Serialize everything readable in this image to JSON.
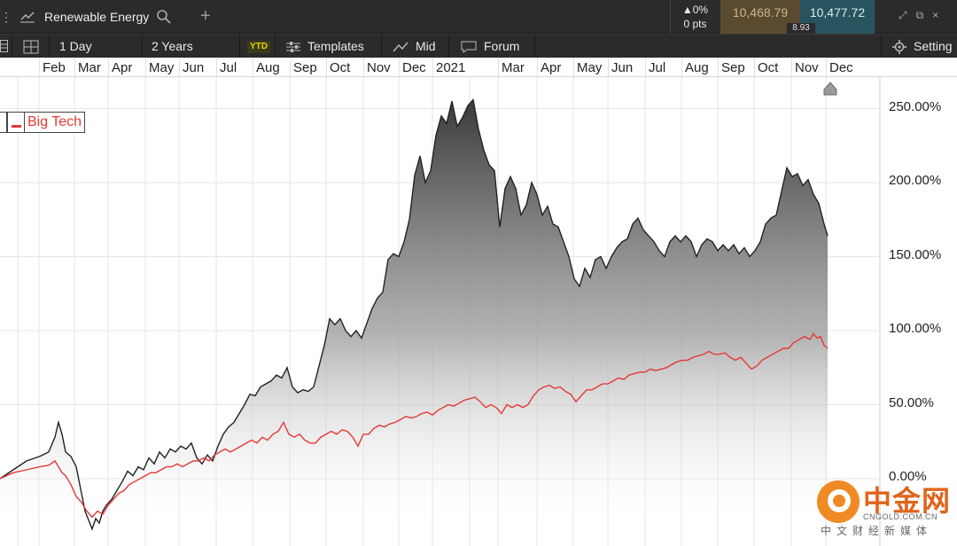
{
  "topbar": {
    "instrument": "Renewable Energy",
    "change_pct": "▲0%",
    "change_pts": "0 pts",
    "bid": "10,468.79",
    "ask": "10,477.72",
    "spread": "8.93"
  },
  "toolbar": {
    "interval": "1 Day",
    "range": "2 Years",
    "ytd": "YTD",
    "templates": "Templates",
    "price_type": "Mid",
    "forum": "Forum",
    "settings": "Setting"
  },
  "legend": {
    "label": "Big Tech",
    "color": "#e53935"
  },
  "watermark": {
    "name": "中金网",
    "domain": "CNGOLD.COM.CN",
    "slogan": "中文财经新媒体"
  },
  "chart_data": {
    "type": "area",
    "x_labels": [
      "Feb",
      "Mar",
      "Apr",
      "May",
      "Jun",
      "Jul",
      "Aug",
      "Sep",
      "Oct",
      "Nov",
      "Dec",
      "2021",
      "Mar",
      "Apr",
      "May",
      "Jun",
      "Jul",
      "Aug",
      "Sep",
      "Oct",
      "Nov",
      "Dec"
    ],
    "y_ticks": [
      "0.00%",
      "50.00%",
      "100.00%",
      "150.00%",
      "200.00%",
      "250.00%"
    ],
    "ylim": [
      -45,
      275
    ],
    "grid": true,
    "legend_position": "top-left",
    "series": [
      {
        "color": "#222222",
        "fill": "gradient-grey",
        "points": [
          [
            0,
            0
          ],
          [
            15,
            6
          ],
          [
            30,
            12
          ],
          [
            45,
            15
          ],
          [
            55,
            18
          ],
          [
            62,
            28
          ],
          [
            66,
            38
          ],
          [
            70,
            30
          ],
          [
            74,
            18
          ],
          [
            80,
            15
          ],
          [
            86,
            8
          ],
          [
            92,
            -10
          ],
          [
            96,
            -22
          ],
          [
            100,
            -28
          ],
          [
            104,
            -34
          ],
          [
            108,
            -27
          ],
          [
            112,
            -30
          ],
          [
            116,
            -22
          ],
          [
            120,
            -18
          ],
          [
            126,
            -14
          ],
          [
            132,
            -8
          ],
          [
            138,
            -2
          ],
          [
            144,
            5
          ],
          [
            150,
            2
          ],
          [
            156,
            8
          ],
          [
            162,
            6
          ],
          [
            168,
            14
          ],
          [
            174,
            10
          ],
          [
            180,
            18
          ],
          [
            186,
            14
          ],
          [
            192,
            20
          ],
          [
            198,
            18
          ],
          [
            204,
            22
          ],
          [
            210,
            20
          ],
          [
            216,
            24
          ],
          [
            222,
            14
          ],
          [
            228,
            10
          ],
          [
            234,
            16
          ],
          [
            240,
            12
          ],
          [
            246,
            22
          ],
          [
            252,
            30
          ],
          [
            258,
            35
          ],
          [
            264,
            38
          ],
          [
            270,
            44
          ],
          [
            276,
            50
          ],
          [
            282,
            57
          ],
          [
            288,
            56
          ],
          [
            294,
            62
          ],
          [
            300,
            64
          ],
          [
            306,
            66
          ],
          [
            312,
            70
          ],
          [
            318,
            68
          ],
          [
            324,
            75
          ],
          [
            330,
            62
          ],
          [
            336,
            58
          ],
          [
            342,
            60
          ],
          [
            348,
            59
          ],
          [
            354,
            62
          ],
          [
            360,
            76
          ],
          [
            366,
            90
          ],
          [
            372,
            108
          ],
          [
            378,
            104
          ],
          [
            384,
            108
          ],
          [
            390,
            100
          ],
          [
            396,
            96
          ],
          [
            402,
            100
          ],
          [
            408,
            95
          ],
          [
            414,
            105
          ],
          [
            420,
            115
          ],
          [
            426,
            122
          ],
          [
            432,
            126
          ],
          [
            438,
            148
          ],
          [
            444,
            152
          ],
          [
            450,
            150
          ],
          [
            456,
            160
          ],
          [
            462,
            175
          ],
          [
            468,
            205
          ],
          [
            474,
            218
          ],
          [
            480,
            200
          ],
          [
            486,
            208
          ],
          [
            492,
            232
          ],
          [
            498,
            245
          ],
          [
            504,
            240
          ],
          [
            510,
            255
          ],
          [
            516,
            238
          ],
          [
            522,
            244
          ],
          [
            528,
            252
          ],
          [
            534,
            256
          ],
          [
            540,
            236
          ],
          [
            546,
            222
          ],
          [
            552,
            212
          ],
          [
            558,
            208
          ],
          [
            564,
            170
          ],
          [
            570,
            196
          ],
          [
            576,
            204
          ],
          [
            582,
            196
          ],
          [
            588,
            178
          ],
          [
            594,
            185
          ],
          [
            600,
            200
          ],
          [
            606,
            192
          ],
          [
            612,
            178
          ],
          [
            618,
            184
          ],
          [
            624,
            172
          ],
          [
            630,
            170
          ],
          [
            636,
            160
          ],
          [
            642,
            150
          ],
          [
            648,
            135
          ],
          [
            654,
            130
          ],
          [
            660,
            142
          ],
          [
            666,
            136
          ],
          [
            672,
            148
          ],
          [
            678,
            150
          ],
          [
            684,
            142
          ],
          [
            690,
            150
          ],
          [
            696,
            156
          ],
          [
            702,
            160
          ],
          [
            708,
            162
          ],
          [
            714,
            172
          ],
          [
            720,
            176
          ],
          [
            726,
            168
          ],
          [
            732,
            164
          ],
          [
            738,
            160
          ],
          [
            744,
            154
          ],
          [
            750,
            150
          ],
          [
            756,
            160
          ],
          [
            762,
            164
          ],
          [
            768,
            160
          ],
          [
            774,
            164
          ],
          [
            780,
            160
          ],
          [
            786,
            150
          ],
          [
            792,
            158
          ],
          [
            798,
            162
          ],
          [
            804,
            160
          ],
          [
            810,
            154
          ],
          [
            816,
            158
          ],
          [
            822,
            154
          ],
          [
            828,
            158
          ],
          [
            834,
            152
          ],
          [
            840,
            156
          ],
          [
            846,
            150
          ],
          [
            852,
            154
          ],
          [
            858,
            160
          ],
          [
            864,
            172
          ],
          [
            870,
            176
          ],
          [
            876,
            178
          ],
          [
            882,
            194
          ],
          [
            888,
            210
          ],
          [
            894,
            204
          ],
          [
            900,
            206
          ],
          [
            906,
            198
          ],
          [
            912,
            202
          ],
          [
            918,
            192
          ],
          [
            924,
            186
          ],
          [
            930,
            172
          ],
          [
            934,
            164
          ]
        ]
      },
      {
        "name": "Big Tech",
        "color": "#e53935",
        "points": [
          [
            0,
            0
          ],
          [
            15,
            4
          ],
          [
            30,
            6
          ],
          [
            45,
            8
          ],
          [
            55,
            9
          ],
          [
            62,
            12
          ],
          [
            66,
            8
          ],
          [
            70,
            4
          ],
          [
            74,
            2
          ],
          [
            80,
            -4
          ],
          [
            86,
            -12
          ],
          [
            92,
            -16
          ],
          [
            98,
            -22
          ],
          [
            104,
            -26
          ],
          [
            110,
            -22
          ],
          [
            116,
            -24
          ],
          [
            122,
            -18
          ],
          [
            128,
            -14
          ],
          [
            134,
            -10
          ],
          [
            140,
            -8
          ],
          [
            146,
            -4
          ],
          [
            152,
            -2
          ],
          [
            158,
            0
          ],
          [
            164,
            2
          ],
          [
            170,
            4
          ],
          [
            176,
            4
          ],
          [
            182,
            6
          ],
          [
            188,
            8
          ],
          [
            194,
            8
          ],
          [
            200,
            10
          ],
          [
            206,
            8
          ],
          [
            212,
            10
          ],
          [
            218,
            12
          ],
          [
            224,
            12
          ],
          [
            230,
            14
          ],
          [
            236,
            12
          ],
          [
            242,
            16
          ],
          [
            248,
            18
          ],
          [
            254,
            20
          ],
          [
            260,
            18
          ],
          [
            266,
            20
          ],
          [
            272,
            22
          ],
          [
            278,
            24
          ],
          [
            284,
            26
          ],
          [
            290,
            24
          ],
          [
            296,
            28
          ],
          [
            302,
            26
          ],
          [
            308,
            30
          ],
          [
            314,
            32
          ],
          [
            320,
            38
          ],
          [
            326,
            30
          ],
          [
            332,
            28
          ],
          [
            338,
            30
          ],
          [
            344,
            26
          ],
          [
            350,
            24
          ],
          [
            356,
            24
          ],
          [
            362,
            28
          ],
          [
            368,
            30
          ],
          [
            374,
            32
          ],
          [
            380,
            30
          ],
          [
            386,
            33
          ],
          [
            392,
            32
          ],
          [
            398,
            28
          ],
          [
            404,
            22
          ],
          [
            410,
            30
          ],
          [
            416,
            30
          ],
          [
            422,
            34
          ],
          [
            428,
            36
          ],
          [
            434,
            35
          ],
          [
            440,
            37
          ],
          [
            446,
            38
          ],
          [
            452,
            40
          ],
          [
            458,
            42
          ],
          [
            464,
            41
          ],
          [
            470,
            42
          ],
          [
            476,
            44
          ],
          [
            482,
            45
          ],
          [
            488,
            43
          ],
          [
            494,
            46
          ],
          [
            500,
            48
          ],
          [
            506,
            50
          ],
          [
            512,
            49
          ],
          [
            518,
            51
          ],
          [
            524,
            53
          ],
          [
            530,
            54
          ],
          [
            536,
            55
          ],
          [
            542,
            52
          ],
          [
            548,
            48
          ],
          [
            554,
            50
          ],
          [
            560,
            48
          ],
          [
            566,
            44
          ],
          [
            572,
            50
          ],
          [
            578,
            48
          ],
          [
            584,
            50
          ],
          [
            590,
            48
          ],
          [
            596,
            50
          ],
          [
            602,
            56
          ],
          [
            608,
            60
          ],
          [
            614,
            62
          ],
          [
            620,
            63
          ],
          [
            626,
            61
          ],
          [
            632,
            62
          ],
          [
            638,
            59
          ],
          [
            644,
            57
          ],
          [
            650,
            52
          ],
          [
            656,
            56
          ],
          [
            662,
            60
          ],
          [
            668,
            60
          ],
          [
            674,
            62
          ],
          [
            680,
            64
          ],
          [
            686,
            64
          ],
          [
            692,
            66
          ],
          [
            698,
            68
          ],
          [
            704,
            67
          ],
          [
            710,
            70
          ],
          [
            716,
            71
          ],
          [
            722,
            72
          ],
          [
            728,
            72
          ],
          [
            734,
            74
          ],
          [
            740,
            73
          ],
          [
            746,
            74
          ],
          [
            752,
            75
          ],
          [
            758,
            77
          ],
          [
            764,
            79
          ],
          [
            770,
            80
          ],
          [
            776,
            80
          ],
          [
            782,
            82
          ],
          [
            788,
            83
          ],
          [
            794,
            84
          ],
          [
            800,
            86
          ],
          [
            806,
            84
          ],
          [
            812,
            84
          ],
          [
            818,
            85
          ],
          [
            824,
            82
          ],
          [
            830,
            80
          ],
          [
            836,
            82
          ],
          [
            842,
            78
          ],
          [
            848,
            74
          ],
          [
            854,
            76
          ],
          [
            860,
            80
          ],
          [
            866,
            82
          ],
          [
            872,
            84
          ],
          [
            878,
            86
          ],
          [
            884,
            88
          ],
          [
            890,
            88
          ],
          [
            896,
            92
          ],
          [
            902,
            94
          ],
          [
            908,
            96
          ],
          [
            914,
            94
          ],
          [
            918,
            98
          ],
          [
            922,
            95
          ],
          [
            926,
            96
          ],
          [
            930,
            90
          ],
          [
            934,
            88
          ]
        ]
      }
    ]
  }
}
